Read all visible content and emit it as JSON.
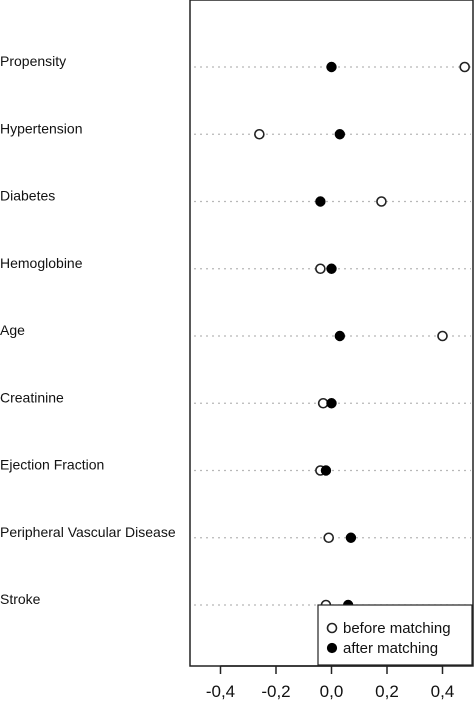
{
  "chart_data": {
    "type": "scatter",
    "orientation": "horizontal-dot-plot",
    "categories": [
      "Propensity",
      "Hypertension",
      "Diabetes",
      "Hemoglobine",
      "Age",
      "Creatinine",
      "Ejection Fraction",
      "Peripheral Vascular Disease",
      "Stroke"
    ],
    "series": [
      {
        "name": "before matching",
        "marker": "open-circle",
        "values": [
          0.48,
          -0.26,
          0.18,
          -0.04,
          0.4,
          -0.03,
          -0.04,
          -0.01,
          -0.02
        ]
      },
      {
        "name": "after matching",
        "marker": "filled-circle",
        "values": [
          0.0,
          0.03,
          -0.04,
          0.0,
          0.03,
          0.0,
          -0.02,
          0.07,
          0.06
        ]
      }
    ],
    "xticks": [
      "-0,4",
      "-0,2",
      "0,0",
      "0,2",
      "0,4"
    ],
    "xtick_values": [
      -0.4,
      -0.2,
      0.0,
      0.2,
      0.4
    ],
    "xlim": [
      -0.51,
      0.52
    ],
    "grid": "horizontal dotted lines at each category",
    "legend_placement": "bottom-right",
    "title": "",
    "xlabel": "",
    "ylabel": ""
  }
}
